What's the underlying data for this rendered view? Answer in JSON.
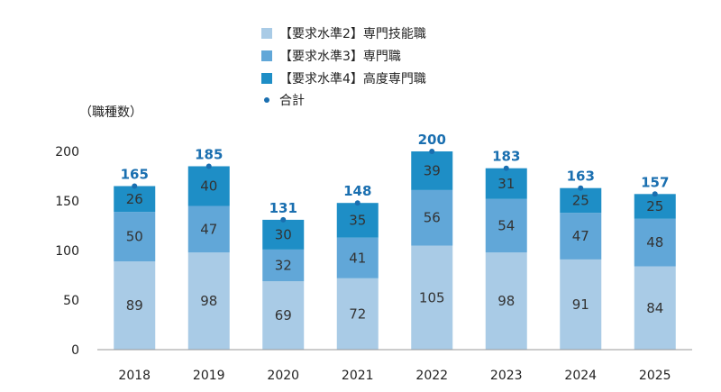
{
  "chart_data": {
    "type": "bar",
    "stacked": true,
    "unit_label": "（職種数）",
    "categories": [
      "2018",
      "2019",
      "2020",
      "2021",
      "2022",
      "2023",
      "2024",
      "2025"
    ],
    "series": [
      {
        "name": "【要求水準2】専門技能職",
        "color": "#a9cbe6",
        "values": [
          89,
          98,
          69,
          72,
          105,
          98,
          91,
          84
        ]
      },
      {
        "name": "【要求水準3】専門職",
        "color": "#61a7d8",
        "values": [
          50,
          47,
          32,
          41,
          56,
          54,
          47,
          48
        ]
      },
      {
        "name": "【要求水準4】高度専門職",
        "color": "#1e8ec6",
        "values": [
          26,
          40,
          30,
          35,
          39,
          31,
          25,
          25
        ]
      }
    ],
    "totals": {
      "name": "合計",
      "color": "#1a6fb0",
      "values": [
        165,
        185,
        131,
        148,
        200,
        183,
        163,
        157
      ]
    },
    "y_ticks": [
      "0",
      "50",
      "100",
      "150",
      "200"
    ],
    "ylim": [
      0,
      200
    ],
    "grid": false,
    "legend_position": "top-center"
  }
}
